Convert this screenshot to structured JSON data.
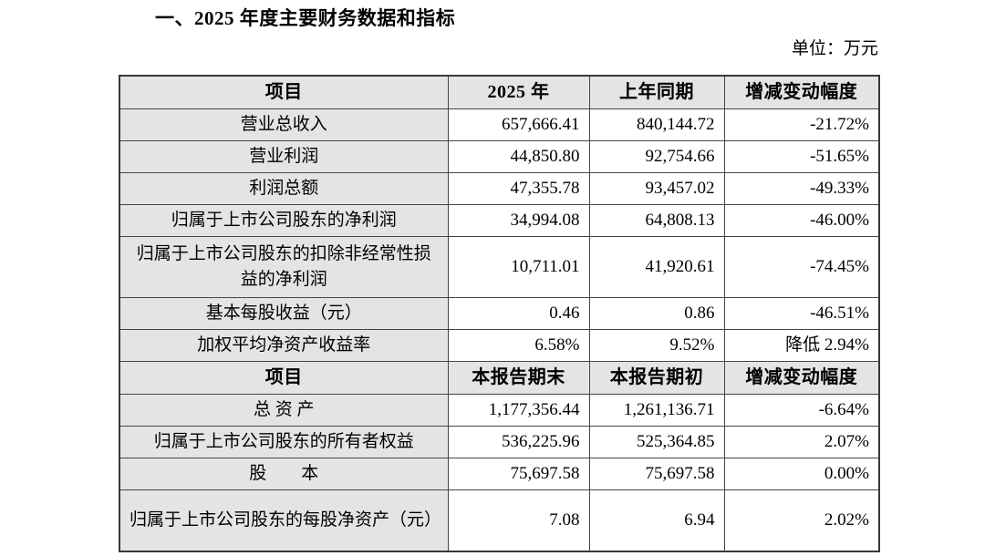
{
  "page": {
    "title": "一、2025 年度主要财务数据和指标",
    "unit_label": "单位：万元"
  },
  "colors": {
    "header_fill": "#e4e4e6",
    "label_fill": "#e4e4e6",
    "border": "#454545",
    "text": "#000000",
    "background": "#ffffff"
  },
  "table": {
    "sections": [
      {
        "header": [
          "项目",
          "2025 年",
          "上年同期",
          "增减变动幅度"
        ],
        "rows": [
          {
            "label": "营业总收入",
            "current": "657,666.41",
            "prior": "840,144.72",
            "change": "-21.72%"
          },
          {
            "label": "营业利润",
            "current": "44,850.80",
            "prior": "92,754.66",
            "change": "-51.65%"
          },
          {
            "label": "利润总额",
            "current": "47,355.78",
            "prior": "93,457.02",
            "change": "-49.33%"
          },
          {
            "label": "归属于上市公司股东的净利润",
            "current": "34,994.08",
            "prior": "64,808.13",
            "change": "-46.00%"
          },
          {
            "label": "归属于上市公司股东的扣除非经常性损益的净利润",
            "current": "10,711.01",
            "prior": "41,920.61",
            "change": "-74.45%"
          },
          {
            "label": "基本每股收益（元）",
            "current": "0.46",
            "prior": "0.86",
            "change": "-46.51%"
          },
          {
            "label": "加权平均净资产收益率",
            "current": "6.58%",
            "prior": "9.52%",
            "change": "降低 2.94%"
          }
        ]
      },
      {
        "header": [
          "项目",
          "本报告期末",
          "本报告期初",
          "增减变动幅度"
        ],
        "rows": [
          {
            "label": "总  资  产",
            "current": "1,177,356.44",
            "prior": "1,261,136.71",
            "change": "-6.64%"
          },
          {
            "label": "归属于上市公司股东的所有者权益",
            "current": "536,225.96",
            "prior": "525,364.85",
            "change": "2.07%"
          },
          {
            "label": "股　　本",
            "current": "75,697.58",
            "prior": "75,697.58",
            "change": "0.00%"
          },
          {
            "label": "归属于上市公司股东的每股净资产（元）",
            "current": "7.08",
            "prior": "6.94",
            "change": "2.02%"
          }
        ]
      }
    ]
  }
}
